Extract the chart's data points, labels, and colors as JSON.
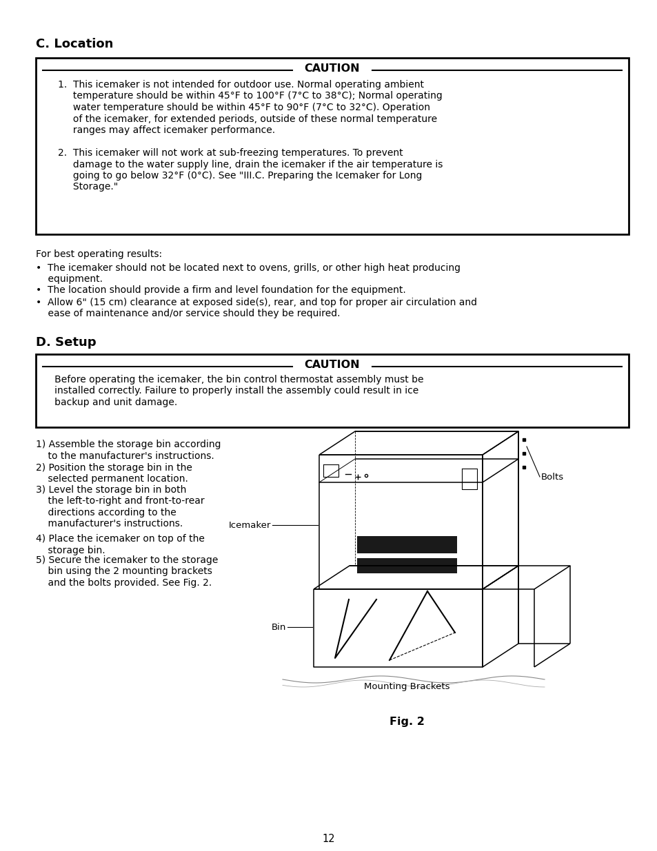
{
  "page_number": "12",
  "bg": "#ffffff",
  "title_c": "C. Location",
  "title_d": "D. Setup",
  "caution1_title": "CAUTION",
  "caution2_title": "CAUTION",
  "fig_caption": "Fig. 2",
  "caution1_line1": "1.  This icemaker is not intended for outdoor use. Normal operating ambient",
  "caution1_line2": "     temperature should be within 45°F to 100°F (7°C to 38°C); Normal operating",
  "caution1_line3": "     water temperature should be within 45°F to 90°F (7°C to 32°C). Operation",
  "caution1_line4": "     of the icemaker, for extended periods, outside of these normal temperature",
  "caution1_line5": "     ranges may affect icemaker performance.",
  "caution1_line6": "2.  This icemaker will not work at sub-freezing temperatures. To prevent",
  "caution1_line7": "     damage to the water supply line, drain the icemaker if the air temperature is",
  "caution1_line8": "     going to go below 32°F (0°C). See \"III.C. Preparing the Icemaker for Long",
  "caution1_line9": "     Storage.\"",
  "loc_intro": "For best operating results:",
  "bullet1": "•  The icemaker should not be located next to ovens, grills, or other high heat producing",
  "bullet1b": "    equipment.",
  "bullet2": "•  The location should provide a firm and level foundation for the equipment.",
  "bullet3": "•  Allow 6\" (15 cm) clearance at exposed side(s), rear, and top for proper air circulation and",
  "bullet3b": "    ease of maintenance and/or service should they be required.",
  "caution2_line1": "   Before operating the icemaker, the bin control thermostat assembly must be",
  "caution2_line2": "   installed correctly. Failure to properly install the assembly could result in ice",
  "caution2_line3": "   backup and unit damage.",
  "step1a": "1) Assemble the storage bin according",
  "step1b": "    to the manufacturer's instructions.",
  "step2a": "2) Position the storage bin in the",
  "step2b": "    selected permanent location.",
  "step3a": "3) Level the storage bin in both",
  "step3b": "    the left-to-right and front-to-rear",
  "step3c": "    directions according to the",
  "step3d": "    manufacturer's instructions.",
  "step4a": "4) Place the icemaker on top of the",
  "step4b": "    storage bin.",
  "step5a": "5) Secure the icemaker to the storage",
  "step5b": "    bin using the 2 mounting brackets",
  "step5c": "    and the bolts provided. See Fig. 2.",
  "label_icemaker": "Icemaker",
  "label_bolts": "Bolts",
  "label_bin": "Bin",
  "label_mounting": "Mounting Brackets"
}
